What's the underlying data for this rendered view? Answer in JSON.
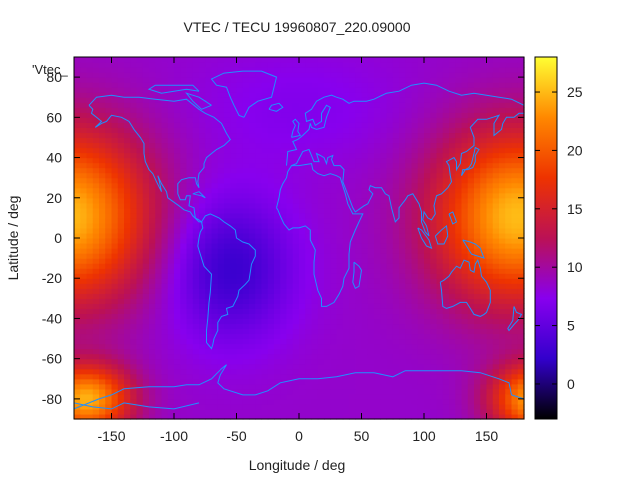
{
  "chart_data": {
    "type": "heatmap",
    "title": "VTEC / TECU 19960807_220.09000",
    "xlabel": "Longitude / deg",
    "ylabel": "Latitude / deg",
    "legend_key": "'Vtec_",
    "xlim": [
      -180,
      180
    ],
    "ylim": [
      -90,
      90
    ],
    "xticks": [
      -150,
      -100,
      -50,
      0,
      50,
      100,
      150
    ],
    "yticks": [
      -80,
      -60,
      -40,
      -20,
      0,
      20,
      40,
      60,
      80
    ],
    "colorbar": {
      "range": [
        -3,
        28
      ],
      "ticks": [
        0,
        5,
        10,
        15,
        20,
        25
      ],
      "colors": [
        "#000000",
        "#3300cc",
        "#8800ee",
        "#bb1155",
        "#ee3300",
        "#ff8800",
        "#ffff33"
      ]
    },
    "field_components": [
      {
        "lon": 165,
        "lat": 10,
        "amp": 9,
        "sigma_lon": 45,
        "sigma_lat": 30
      },
      {
        "lon": -175,
        "lat": 12,
        "amp": 8,
        "sigma_lon": 45,
        "sigma_lat": 30
      },
      {
        "lon": -170,
        "lat": -80,
        "amp": 16,
        "sigma_lon": 25,
        "sigma_lat": 12
      },
      {
        "lon": -55,
        "lat": -15,
        "amp": -6,
        "sigma_lon": 35,
        "sigma_lat": 25
      },
      {
        "lon": 0,
        "lat": 65,
        "amp": -1.5,
        "sigma_lon": 60,
        "sigma_lat": 20
      }
    ],
    "base_value": 8.5,
    "grid": false,
    "coastline_color": "#1e90ff"
  }
}
